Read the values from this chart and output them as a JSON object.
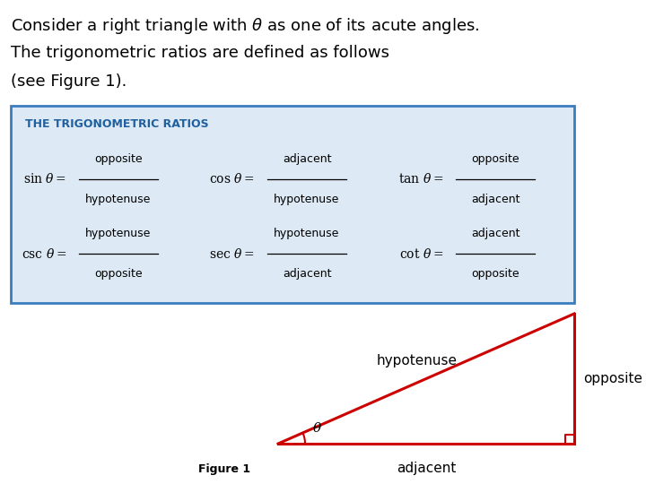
{
  "bg_color": "#ffffff",
  "title_text_line1": "Consider a right triangle with $\\theta$ as one of its acute angles.",
  "title_text_line2": "The trigonometric ratios are defined as follows",
  "title_text_line3": "(see Figure 1).",
  "box_bg_color": "#ddeaf5",
  "box_border_color": "#3a7dbf",
  "box_title": "THE TRIGONOMETRIC RATIOS",
  "box_title_color": "#2060a0",
  "trig_ratios": [
    {
      "label": "$\\sin\\,\\theta=$",
      "num": "opposite",
      "den": "hypotenuse",
      "col": 0,
      "row": 0
    },
    {
      "label": "$\\cos\\,\\theta=$",
      "num": "adjacent",
      "den": "hypotenuse",
      "col": 1,
      "row": 0
    },
    {
      "label": "$\\tan\\,\\theta=$",
      "num": "opposite",
      "den": "adjacent",
      "col": 2,
      "row": 0
    },
    {
      "label": "$\\csc\\,\\theta=$",
      "num": "hypotenuse",
      "den": "opposite",
      "col": 0,
      "row": 1
    },
    {
      "label": "$\\sec\\,\\theta=$",
      "num": "hypotenuse",
      "den": "adjacent",
      "col": 1,
      "row": 1
    },
    {
      "label": "$\\cot\\,\\theta=$",
      "num": "adjacent",
      "den": "opposite",
      "col": 2,
      "row": 1
    }
  ],
  "triangle_color": "#cc0000",
  "label_hypotenuse": "hypotenuse",
  "label_opposite": "opposite",
  "label_adjacent": "adjacent",
  "label_theta": "$\\theta$",
  "figure_caption": "Figure 1",
  "figure_caption_fontsize": 9
}
